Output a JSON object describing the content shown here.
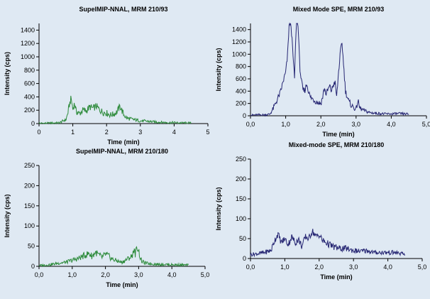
{
  "colors": {
    "background": "#dfe9f3",
    "green_series": "#2d8b3b",
    "navy_series": "#262673",
    "axis": "#000000"
  },
  "chart_data": [
    {
      "type": "line",
      "title": "SupelMIP-NNAL, MRM 210/93",
      "xlabel": "Time (min)",
      "ylabel": "Intensity (cps)",
      "xlim": [
        0,
        5
      ],
      "ylim": [
        0,
        1500
      ],
      "xticks": [
        0,
        1,
        2,
        3,
        4,
        5
      ],
      "xtick_labels": [
        "0",
        "1",
        "2",
        "3",
        "4",
        "5"
      ],
      "yticks": [
        0,
        200,
        400,
        600,
        800,
        1000,
        1200,
        1400
      ],
      "ytick_labels": [
        "0",
        "200",
        "400",
        "600",
        "800",
        "1000",
        "1200",
        "1400"
      ],
      "grid": false,
      "color": "#2d8b3b",
      "x": [
        0.0,
        0.2,
        0.4,
        0.6,
        0.8,
        0.85,
        0.9,
        0.95,
        1.0,
        1.05,
        1.1,
        1.2,
        1.3,
        1.4,
        1.5,
        1.6,
        1.7,
        1.8,
        1.9,
        2.0,
        2.1,
        2.2,
        2.3,
        2.4,
        2.5,
        2.6,
        2.8,
        3.0,
        3.2,
        3.4,
        3.6,
        3.8,
        4.0,
        4.2,
        4.4,
        4.5
      ],
      "y": [
        5,
        5,
        8,
        12,
        60,
        150,
        280,
        380,
        220,
        300,
        180,
        150,
        200,
        190,
        250,
        230,
        260,
        200,
        170,
        160,
        130,
        140,
        170,
        260,
        140,
        80,
        60,
        40,
        35,
        25,
        20,
        15,
        15,
        10,
        10,
        8
      ]
    },
    {
      "type": "line",
      "title": "Mixed Mode SPE, MRM 210/93",
      "xlabel": "Time (min)",
      "ylabel": "Intensity (cps)",
      "xlim": [
        0,
        5
      ],
      "ylim": [
        0,
        1500
      ],
      "xticks": [
        0,
        1,
        2,
        3,
        4,
        5
      ],
      "xtick_labels": [
        "0,0",
        "1,0",
        "2,0",
        "3,0",
        "4,0",
        "5,0"
      ],
      "yticks": [
        0,
        200,
        400,
        600,
        800,
        1000,
        1200,
        1400
      ],
      "ytick_labels": [
        "0",
        "200",
        "400",
        "600",
        "800",
        "1000",
        "1200",
        "1400"
      ],
      "grid": false,
      "color": "#262673",
      "x": [
        0.0,
        0.2,
        0.4,
        0.55,
        0.65,
        0.75,
        0.85,
        0.95,
        1.0,
        1.05,
        1.1,
        1.15,
        1.2,
        1.25,
        1.3,
        1.35,
        1.4,
        1.45,
        1.5,
        1.55,
        1.6,
        1.65,
        1.7,
        1.8,
        1.9,
        2.0,
        2.05,
        2.1,
        2.15,
        2.2,
        2.25,
        2.3,
        2.35,
        2.4,
        2.45,
        2.5,
        2.55,
        2.6,
        2.65,
        2.7,
        2.8,
        2.9,
        3.0,
        3.05,
        3.1,
        3.2,
        3.4,
        3.6,
        3.8,
        4.0,
        4.2,
        4.4,
        4.5
      ],
      "y": [
        10,
        15,
        15,
        25,
        120,
        250,
        380,
        600,
        700,
        950,
        1500,
        1500,
        1050,
        600,
        1500,
        1500,
        800,
        550,
        400,
        420,
        520,
        400,
        300,
        260,
        220,
        200,
        300,
        450,
        350,
        420,
        480,
        400,
        500,
        550,
        300,
        700,
        1000,
        1200,
        800,
        400,
        220,
        150,
        100,
        250,
        130,
        90,
        50,
        40,
        30,
        30,
        35,
        30,
        25
      ]
    },
    {
      "type": "line",
      "title": "SupelMIP-NNAL, MRM 210/180",
      "xlabel": "Time (min)",
      "ylabel": "Intensity (cps)",
      "xlim": [
        0,
        5
      ],
      "ylim": [
        0,
        250
      ],
      "xticks": [
        0,
        1,
        2,
        3,
        4,
        5
      ],
      "xtick_labels": [
        "0,0",
        "1,0",
        "2,0",
        "3,0",
        "4,0",
        "5,0"
      ],
      "yticks": [
        0,
        50,
        100,
        150,
        200,
        250
      ],
      "ytick_labels": [
        "0",
        "50",
        "100",
        "150",
        "200",
        "250"
      ],
      "grid": false,
      "color": "#2d8b3b",
      "x": [
        0.0,
        0.2,
        0.4,
        0.6,
        0.8,
        1.0,
        1.2,
        1.4,
        1.5,
        1.6,
        1.7,
        1.8,
        1.9,
        2.0,
        2.1,
        2.2,
        2.3,
        2.4,
        2.5,
        2.6,
        2.7,
        2.8,
        2.85,
        2.9,
        2.95,
        3.0,
        3.05,
        3.1,
        3.2,
        3.4,
        3.6,
        3.8,
        4.0,
        4.2,
        4.4,
        4.5
      ],
      "y": [
        2,
        3,
        5,
        8,
        10,
        15,
        20,
        28,
        32,
        25,
        35,
        28,
        22,
        30,
        25,
        18,
        15,
        12,
        10,
        15,
        20,
        25,
        42,
        30,
        48,
        40,
        20,
        12,
        8,
        6,
        5,
        5,
        4,
        4,
        3,
        3
      ]
    },
    {
      "type": "line",
      "title": "Mixed-mode SPE, MRM 210/180",
      "xlabel": "Time (min)",
      "ylabel": "Intensity (cps)",
      "xlim": [
        0,
        5
      ],
      "ylim": [
        0,
        250
      ],
      "xticks": [
        0,
        1,
        2,
        3,
        4,
        5
      ],
      "xtick_labels": [
        "0,0",
        "1,0",
        "2,0",
        "3,0",
        "4,0",
        "5,0"
      ],
      "yticks": [
        0,
        50,
        100,
        150,
        200,
        250
      ],
      "ytick_labels": [
        "0",
        "50",
        "100",
        "150",
        "200",
        "250"
      ],
      "grid": false,
      "color": "#262673",
      "x": [
        0.0,
        0.2,
        0.4,
        0.6,
        0.7,
        0.8,
        0.9,
        1.0,
        1.1,
        1.2,
        1.3,
        1.4,
        1.5,
        1.6,
        1.7,
        1.8,
        1.9,
        2.0,
        2.1,
        2.2,
        2.3,
        2.4,
        2.6,
        2.8,
        3.0,
        3.2,
        3.4,
        3.6,
        3.8,
        4.0,
        4.2,
        4.4,
        4.5
      ],
      "y": [
        10,
        12,
        15,
        20,
        45,
        62,
        40,
        50,
        35,
        55,
        40,
        48,
        30,
        55,
        50,
        70,
        55,
        60,
        45,
        40,
        35,
        30,
        25,
        25,
        20,
        18,
        20,
        15,
        15,
        15,
        15,
        12,
        10
      ]
    }
  ]
}
